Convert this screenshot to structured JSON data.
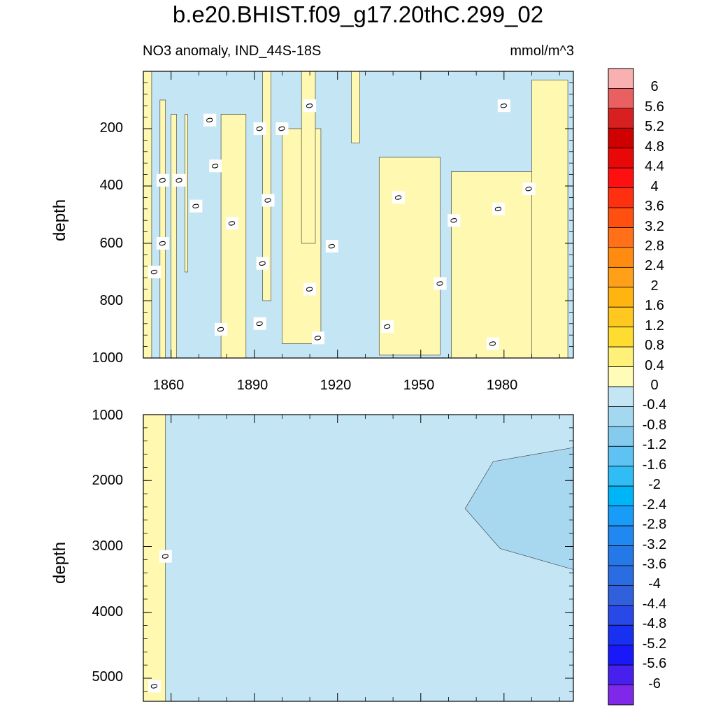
{
  "title": "b.e20.BHIST.f09_g17.20thC.299_02",
  "subtitle_left": "NO3 anomaly, IND_44S-18S",
  "subtitle_right": "mmol/m^3",
  "chart_data": [
    {
      "type": "heatmap",
      "panel": "upper",
      "ylabel": "depth",
      "x_ticks": [
        "1860",
        "1890",
        "1920",
        "1950",
        "1980"
      ],
      "y_ticks": [
        "200",
        "400",
        "600",
        "800",
        "1000"
      ],
      "xlim": [
        1850,
        2005
      ],
      "ylim": [
        1000,
        0
      ],
      "contour_label": "0",
      "positive_regions": [
        {
          "x": [
            1850,
            1853
          ],
          "y": [
            0,
            1000
          ]
        },
        {
          "x": [
            1856,
            1858
          ],
          "y": [
            100,
            1000
          ]
        },
        {
          "x": [
            1860,
            1862
          ],
          "y": [
            150,
            1000
          ]
        },
        {
          "x": [
            1865,
            1866
          ],
          "y": [
            150,
            700
          ]
        },
        {
          "x": [
            1878,
            1887
          ],
          "y": [
            150,
            1000
          ]
        },
        {
          "x": [
            1893,
            1896
          ],
          "y": [
            0,
            800
          ]
        },
        {
          "x": [
            1900,
            1914
          ],
          "y": [
            200,
            950
          ]
        },
        {
          "x": [
            1907,
            1912
          ],
          "y": [
            0,
            600
          ]
        },
        {
          "x": [
            1925,
            1928
          ],
          "y": [
            0,
            250
          ]
        },
        {
          "x": [
            1935,
            1957
          ],
          "y": [
            300,
            990
          ]
        },
        {
          "x": [
            1961,
            2003
          ],
          "y": [
            350,
            1000
          ]
        },
        {
          "x": [
            1990,
            2003
          ],
          "y": [
            30,
            1000
          ]
        }
      ]
    },
    {
      "type": "heatmap",
      "panel": "lower",
      "ylabel": "depth",
      "y_ticks": [
        "1000",
        "2000",
        "3000",
        "4000",
        "5000"
      ],
      "xlim": [
        1850,
        2005
      ],
      "ylim": [
        5350,
        1000
      ],
      "contour_label": "0",
      "positive_regions": [
        {
          "x": [
            1850,
            1858
          ],
          "y": [
            1000,
            5350
          ]
        }
      ],
      "negative_regions": [
        {
          "x": [
            1966,
            2005
          ],
          "y": [
            1500,
            3350
          ],
          "level": "-0.4 to -0.8"
        }
      ]
    }
  ],
  "colorbar": {
    "labels": [
      "6",
      "5.6",
      "5.2",
      "4.8",
      "4.4",
      "4",
      "3.6",
      "3.2",
      "2.8",
      "2.4",
      "2",
      "1.6",
      "1.2",
      "0.8",
      "0.4",
      "0",
      "-0.4",
      "-0.8",
      "-1.2",
      "-1.6",
      "-2",
      "-2.4",
      "-2.8",
      "-3.2",
      "-3.6",
      "-4",
      "-4.4",
      "-4.8",
      "-5.2",
      "-5.6",
      "-6"
    ],
    "colors": [
      "#f8b0b0",
      "#ea6060",
      "#d82020",
      "#d00000",
      "#e80808",
      "#ff1010",
      "#ff3010",
      "#ff5010",
      "#ff7018",
      "#ff8c10",
      "#ffa018",
      "#ffb410",
      "#ffc820",
      "#ffdc30",
      "#fff07a",
      "#fffcb8",
      "#c4e6f4",
      "#a4d8f0",
      "#84cbee",
      "#5ec2f3",
      "#30bcf5",
      "#00b4f8",
      "#189cf8",
      "#2088f0",
      "#2478e8",
      "#2a6ce2",
      "#3060dc",
      "#2848e8",
      "#1830f0",
      "#1818f8",
      "#4820ee",
      "#8028ea"
    ]
  },
  "colors": {
    "positive": "#fff8b0",
    "negative": "#c4e6f4",
    "negative_deep": "#a8d8f0"
  }
}
